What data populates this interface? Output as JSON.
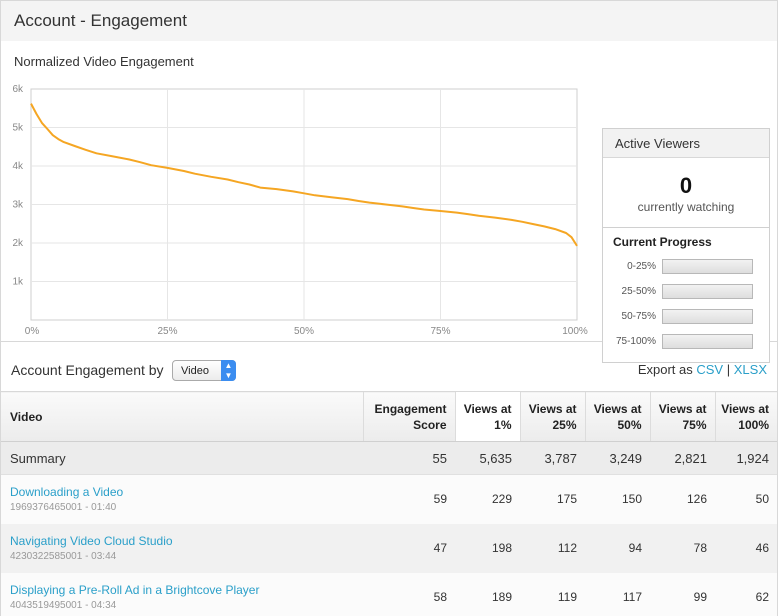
{
  "header": {
    "title": "Account - Engagement"
  },
  "chart_data": {
    "type": "line",
    "title": "Normalized Video Engagement",
    "x_tick_labels": [
      "0%",
      "25%",
      "50%",
      "75%",
      "100%"
    ],
    "y_tick_labels": [
      "1k",
      "2k",
      "3k",
      "4k",
      "5k",
      "6k"
    ],
    "xlim": [
      0,
      100
    ],
    "ylim": [
      0,
      6000
    ],
    "grid": true,
    "color": "#f5a623",
    "series": [
      {
        "points": [
          [
            0,
            5620
          ],
          [
            1,
            5350
          ],
          [
            2,
            5120
          ],
          [
            3,
            4960
          ],
          [
            4,
            4800
          ],
          [
            5,
            4700
          ],
          [
            6,
            4620
          ],
          [
            8,
            4520
          ],
          [
            10,
            4420
          ],
          [
            12,
            4330
          ],
          [
            15,
            4250
          ],
          [
            18,
            4170
          ],
          [
            20,
            4100
          ],
          [
            22,
            4020
          ],
          [
            25,
            3950
          ],
          [
            28,
            3870
          ],
          [
            30,
            3800
          ],
          [
            33,
            3720
          ],
          [
            36,
            3650
          ],
          [
            38,
            3580
          ],
          [
            40,
            3520
          ],
          [
            42,
            3440
          ],
          [
            45,
            3400
          ],
          [
            48,
            3340
          ],
          [
            50,
            3290
          ],
          [
            52,
            3240
          ],
          [
            55,
            3190
          ],
          [
            58,
            3140
          ],
          [
            60,
            3090
          ],
          [
            62,
            3050
          ],
          [
            65,
            3000
          ],
          [
            68,
            2950
          ],
          [
            70,
            2910
          ],
          [
            72,
            2870
          ],
          [
            75,
            2830
          ],
          [
            78,
            2790
          ],
          [
            80,
            2750
          ],
          [
            82,
            2710
          ],
          [
            85,
            2660
          ],
          [
            88,
            2600
          ],
          [
            90,
            2550
          ],
          [
            92,
            2490
          ],
          [
            94,
            2430
          ],
          [
            96,
            2360
          ],
          [
            98,
            2260
          ],
          [
            99,
            2150
          ],
          [
            100,
            1924
          ]
        ]
      }
    ]
  },
  "active_viewers": {
    "title": "Active Viewers",
    "count": "0",
    "subtitle": "currently watching",
    "progress_title": "Current Progress",
    "ranges": [
      {
        "label": "0-25%",
        "value": 0
      },
      {
        "label": "25-50%",
        "value": 0
      },
      {
        "label": "50-75%",
        "value": 0
      },
      {
        "label": "75-100%",
        "value": 0
      }
    ]
  },
  "engagement": {
    "title": "Account Engagement by",
    "selected_dimension": "Video",
    "export_label": "Export as",
    "export_csv": "CSV",
    "export_sep": "|",
    "export_xlsx": "XLSX",
    "columns": [
      "Video",
      "Engagement Score",
      "Views at 1%",
      "Views at 25%",
      "Views at 50%",
      "Views at 75%",
      "Views at 100%"
    ],
    "summary": {
      "label": "Summary",
      "values": [
        "55",
        "5,635",
        "3,787",
        "3,249",
        "2,821",
        "1,924"
      ]
    },
    "rows": [
      {
        "name": "Downloading a Video",
        "meta": "1969376465001 - 01:40",
        "values": [
          "59",
          "229",
          "175",
          "150",
          "126",
          "50"
        ]
      },
      {
        "name": "Navigating Video Cloud Studio",
        "meta": "4230322585001 - 03:44",
        "values": [
          "47",
          "198",
          "112",
          "94",
          "78",
          "46"
        ]
      },
      {
        "name": "Displaying a Pre-Roll Ad in a Brightcove Player",
        "meta": "4043519495001 - 04:34",
        "values": [
          "58",
          "189",
          "119",
          "117",
          "99",
          "62"
        ]
      }
    ]
  }
}
